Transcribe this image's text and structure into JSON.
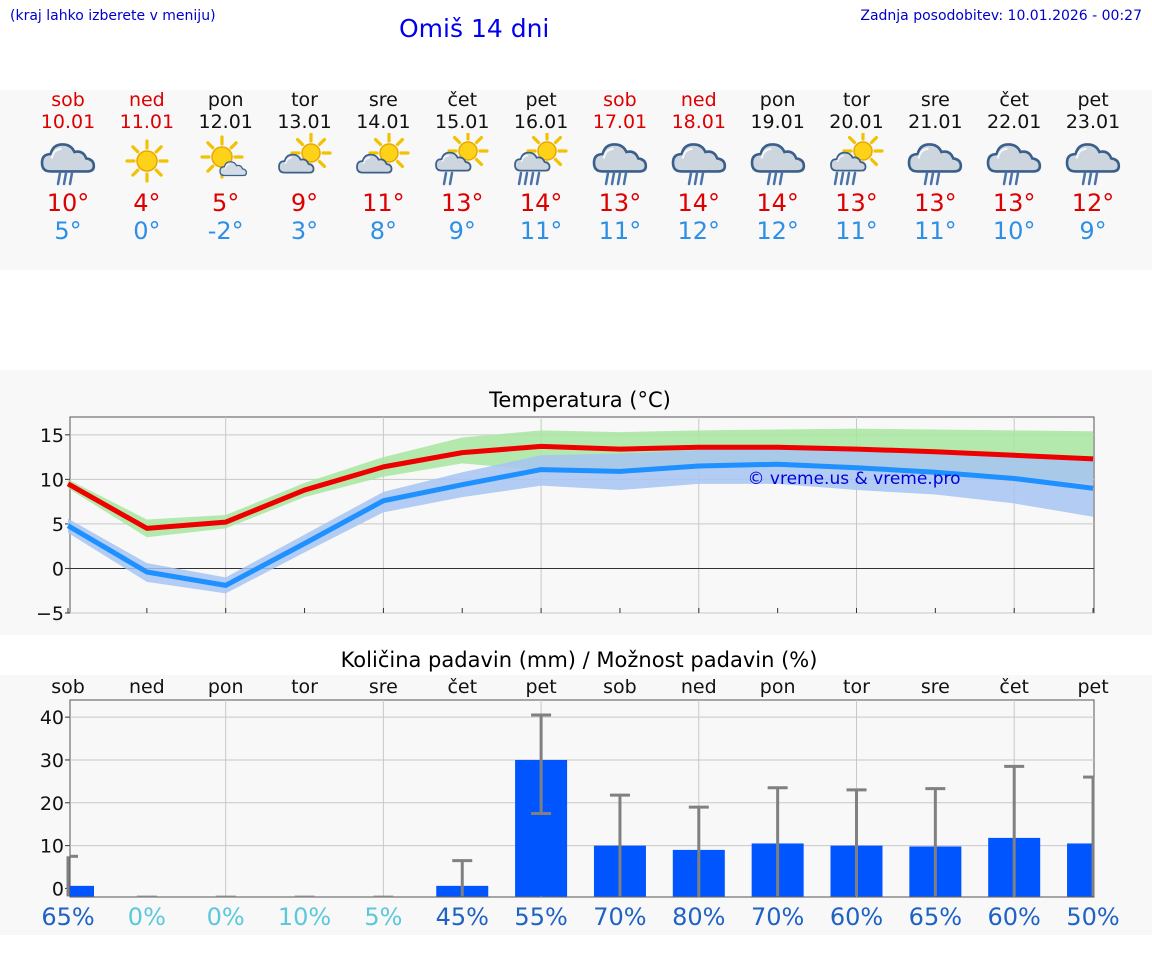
{
  "header": {
    "note": "(kraj lahko izberete v meniju)",
    "title": "Omiš 14 dni",
    "updated": "Zadnja posodobitev: 10.01.2026 - 00:27"
  },
  "days": [
    {
      "name": "sob",
      "date": "10.01",
      "weekend": true,
      "icon": "cloud-rain-icon",
      "max": "10°",
      "min": "5°"
    },
    {
      "name": "ned",
      "date": "11.01",
      "weekend": true,
      "icon": "sun-icon",
      "max": "4°",
      "min": "0°"
    },
    {
      "name": "pon",
      "date": "12.01",
      "weekend": false,
      "icon": "sun-small-cloud-icon",
      "max": "5°",
      "min": "-2°"
    },
    {
      "name": "tor",
      "date": "13.01",
      "weekend": false,
      "icon": "sun-cloud-icon",
      "max": "9°",
      "min": "3°"
    },
    {
      "name": "sre",
      "date": "14.01",
      "weekend": false,
      "icon": "sun-cloud-icon",
      "max": "11°",
      "min": "8°"
    },
    {
      "name": "čet",
      "date": "15.01",
      "weekend": false,
      "icon": "sun-cloud-rain-icon",
      "max": "13°",
      "min": "9°"
    },
    {
      "name": "pet",
      "date": "16.01",
      "weekend": false,
      "icon": "sun-cloud-heavy-rain-icon",
      "max": "14°",
      "min": "11°"
    },
    {
      "name": "sob",
      "date": "17.01",
      "weekend": true,
      "icon": "cloud-heavy-rain-icon",
      "max": "13°",
      "min": "11°"
    },
    {
      "name": "ned",
      "date": "18.01",
      "weekend": true,
      "icon": "cloud-rain-icon",
      "max": "14°",
      "min": "12°"
    },
    {
      "name": "pon",
      "date": "19.01",
      "weekend": false,
      "icon": "cloud-rain-icon",
      "max": "14°",
      "min": "12°"
    },
    {
      "name": "tor",
      "date": "20.01",
      "weekend": false,
      "icon": "sun-cloud-heavy-rain-icon",
      "max": "13°",
      "min": "11°"
    },
    {
      "name": "sre",
      "date": "21.01",
      "weekend": false,
      "icon": "cloud-rain-icon",
      "max": "13°",
      "min": "11°"
    },
    {
      "name": "čet",
      "date": "22.01",
      "weekend": false,
      "icon": "cloud-rain-icon",
      "max": "13°",
      "min": "10°"
    },
    {
      "name": "pet",
      "date": "23.01",
      "weekend": false,
      "icon": "cloud-rain-icon",
      "max": "12°",
      "min": "9°"
    }
  ],
  "colors": {
    "max_line": "#ee0000",
    "max_band": "#a8e6a0",
    "min_line": "#1e90ff",
    "min_band": "#a6c4f2",
    "bar": "#0055ff",
    "whisker": "#808080",
    "grid": "#c8c8c8"
  },
  "chart_data": [
    {
      "type": "line",
      "title": "Temperatura (°C)",
      "watermark": "© vreme.us & vreme.pro",
      "ylim": [
        -5,
        17
      ],
      "yticks": [
        "15",
        "10",
        "5",
        "0",
        "−5"
      ],
      "ytick_values": [
        15,
        10,
        5,
        0,
        -5
      ],
      "x": [
        0,
        1,
        2,
        3,
        4,
        5,
        6,
        7,
        8,
        9,
        10,
        11,
        12,
        13
      ],
      "series": [
        {
          "name": "max",
          "values": [
            9.5,
            4.5,
            5.2,
            8.8,
            11.4,
            13.0,
            13.7,
            13.4,
            13.6,
            13.6,
            13.4,
            13.1,
            12.7,
            12.3
          ],
          "low": [
            9.0,
            3.5,
            4.5,
            8.0,
            10.3,
            11.8,
            11.0,
            11.3,
            11.5,
            11.8,
            11.3,
            10.8,
            10.3,
            9.5
          ],
          "high": [
            10.0,
            5.5,
            6.0,
            9.6,
            12.5,
            14.7,
            15.5,
            15.3,
            15.5,
            15.6,
            15.7,
            15.6,
            15.5,
            15.4
          ]
        },
        {
          "name": "min",
          "values": [
            4.8,
            -0.4,
            -1.9,
            2.8,
            7.6,
            9.4,
            11.1,
            10.9,
            11.5,
            11.7,
            11.3,
            10.8,
            10.1,
            9.0
          ],
          "low": [
            4.0,
            -1.5,
            -2.8,
            1.8,
            6.3,
            8.0,
            9.3,
            8.8,
            9.5,
            9.5,
            8.8,
            8.3,
            7.3,
            5.8
          ],
          "high": [
            5.6,
            0.6,
            -1.0,
            3.8,
            8.6,
            10.8,
            12.7,
            12.9,
            13.3,
            13.9,
            13.6,
            13.1,
            12.7,
            12.3
          ]
        }
      ]
    },
    {
      "type": "bar",
      "title": "Količina padavin (mm) / Možnost padavin (%)",
      "ylim": [
        -2,
        44
      ],
      "yticks": [
        "40",
        "30",
        "20",
        "10",
        "0"
      ],
      "ytick_values": [
        40,
        30,
        20,
        10,
        0
      ],
      "categories": [
        "sob",
        "ned",
        "pon",
        "tor",
        "sre",
        "čet",
        "pet",
        "sob",
        "ned",
        "pon",
        "tor",
        "sre",
        "čet",
        "pet"
      ],
      "values": [
        0.6,
        0,
        0,
        0,
        0,
        0.6,
        30,
        10,
        9,
        10.5,
        10,
        9.8,
        11.8,
        10.5
      ],
      "err_high": [
        7.5,
        0,
        0,
        0,
        0,
        6.5,
        40.5,
        21.8,
        19,
        23.5,
        23,
        23.3,
        28.5,
        26
      ],
      "err_low": [
        0,
        0,
        0,
        0,
        0,
        0,
        17.5,
        0,
        0,
        0,
        0,
        0,
        0,
        0
      ],
      "probability": [
        "65%",
        "0%",
        "0%",
        "10%",
        "5%",
        "45%",
        "55%",
        "70%",
        "80%",
        "70%",
        "60%",
        "65%",
        "60%",
        "50%"
      ],
      "probability_values": [
        65,
        0,
        0,
        10,
        5,
        45,
        55,
        70,
        80,
        70,
        60,
        65,
        60,
        50
      ]
    }
  ]
}
